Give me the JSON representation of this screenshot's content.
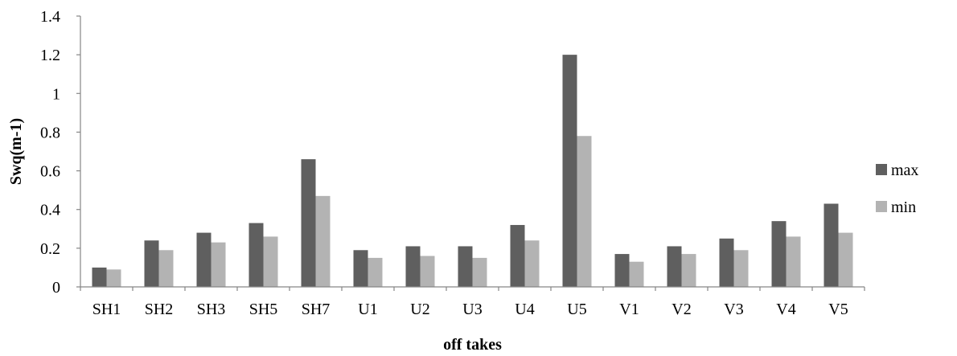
{
  "chart_data": {
    "type": "bar",
    "xlabel": "off takes",
    "ylabel": "Swq(m-1)",
    "ylim": [
      0,
      1.4
    ],
    "yticks": [
      "0",
      "0.2",
      "0.4",
      "0.6",
      "0.8",
      "1",
      "1.2",
      "1.4"
    ],
    "grid": false,
    "legend_position": "right",
    "categories": [
      "SH1",
      "SH2",
      "SH3",
      "SH5",
      "SH7",
      "U1",
      "U2",
      "U3",
      "U4",
      "U5",
      "V1",
      "V2",
      "V3",
      "V4",
      "V5"
    ],
    "series": [
      {
        "name": "max",
        "color": "#5f5f5f",
        "values": [
          0.1,
          0.24,
          0.28,
          0.33,
          0.66,
          0.19,
          0.21,
          0.21,
          0.32,
          1.2,
          0.17,
          0.21,
          0.25,
          0.34,
          0.43
        ]
      },
      {
        "name": "min",
        "color": "#b3b3b3",
        "values": [
          0.09,
          0.19,
          0.23,
          0.26,
          0.47,
          0.15,
          0.16,
          0.15,
          0.24,
          0.78,
          0.13,
          0.17,
          0.19,
          0.26,
          0.28
        ]
      }
    ]
  }
}
